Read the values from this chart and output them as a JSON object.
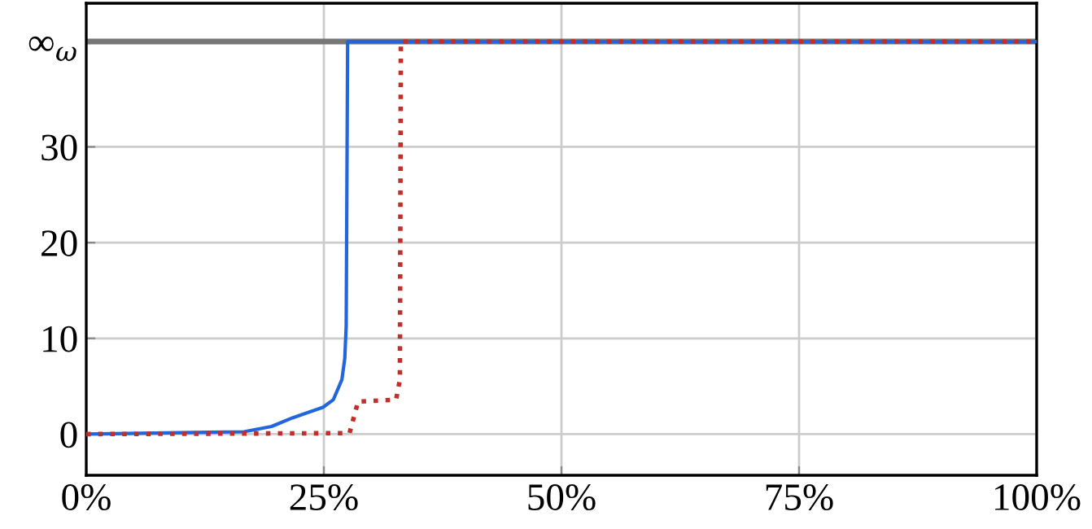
{
  "chart_data": {
    "type": "line",
    "series": [
      {
        "color": "#2266dd",
        "line_style": "solid",
        "x": [
          0,
          16.6,
          19.5,
          21.7,
          24.9,
          26.0,
          26.9,
          27.2,
          27.35,
          27.5,
          100
        ],
        "values": [
          0,
          0.25,
          0.8,
          1.7,
          2.8,
          3.6,
          5.7,
          7.9,
          11.3,
          41,
          41
        ]
      },
      {
        "color": "#c0302a",
        "line_style": "dotted",
        "x": [
          0,
          27.7,
          28.6,
          32.6,
          33.0,
          33.1,
          100
        ],
        "values": [
          0,
          0.1,
          3.4,
          3.6,
          5.7,
          41,
          41
        ]
      }
    ],
    "xlim": [
      0,
      100
    ],
    "xticks": [
      {
        "value": 0,
        "label": "0%"
      },
      {
        "value": 25,
        "label": "25%"
      },
      {
        "value": 50,
        "label": "50%"
      },
      {
        "value": 75,
        "label": "75%"
      },
      {
        "value": 100,
        "label": "100%"
      }
    ],
    "ylim": [
      -4.3,
      45
    ],
    "yticks": [
      0,
      10,
      20,
      30,
      {
        "value": 41,
        "label": "∞$_{ω}$"
      }
    ],
    "ref_lines": [
      {
        "axis": "y",
        "value": 41,
        "label": null,
        "color": "#777777"
      }
    ],
    "grid": true,
    "legend": false,
    "marker": "none"
  }
}
